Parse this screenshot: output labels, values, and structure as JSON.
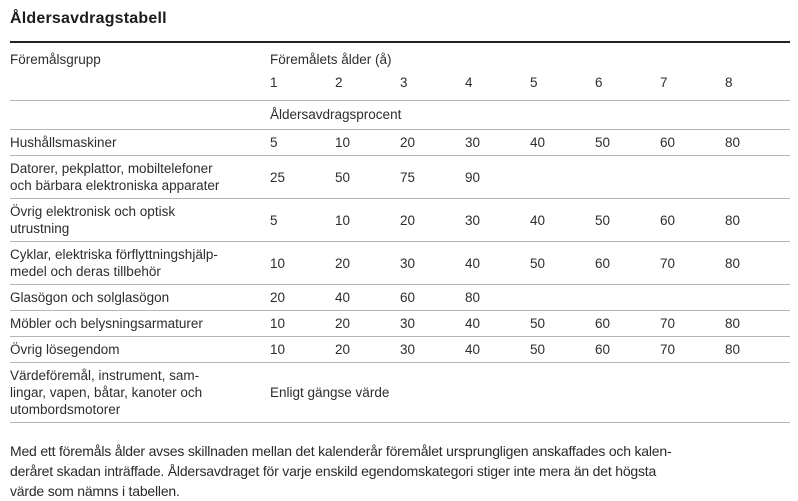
{
  "title": "Åldersavdragstabell",
  "table": {
    "group_header": "Föremålsgrupp",
    "age_header": "Föremålets ålder (å)",
    "age_columns": [
      "1",
      "2",
      "3",
      "4",
      "5",
      "6",
      "7",
      "8"
    ],
    "section_header": "Åldersavdragsprocent",
    "rows": [
      {
        "label": "Hushållsmaskiner",
        "values": [
          "5",
          "10",
          "20",
          "30",
          "40",
          "50",
          "60",
          "80"
        ]
      },
      {
        "label": "Datorer, pekplattor, mobiltelefoner\noch bärbara elektroniska apparater",
        "values": [
          "25",
          "50",
          "75",
          "90",
          "",
          "",
          "",
          ""
        ]
      },
      {
        "label": "Övrig elektronisk och optisk\nutrustning",
        "values": [
          "5",
          "10",
          "20",
          "30",
          "40",
          "50",
          "60",
          "80"
        ]
      },
      {
        "label": "Cyklar, elektriska förflyttningshjälp-\nmedel och deras tillbehör",
        "values": [
          "10",
          "20",
          "30",
          "40",
          "50",
          "60",
          "70",
          "80"
        ]
      },
      {
        "label": "Glasögon och solglasögon",
        "values": [
          "20",
          "40",
          "60",
          "80",
          "",
          "",
          "",
          ""
        ]
      },
      {
        "label": "Möbler och belysningsarmaturer",
        "values": [
          "10",
          "20",
          "30",
          "40",
          "50",
          "60",
          "70",
          "80"
        ]
      },
      {
        "label": "Övrig lösegendom",
        "values": [
          "10",
          "20",
          "30",
          "40",
          "50",
          "60",
          "70",
          "80"
        ]
      }
    ],
    "special_row": {
      "label": "Värdeföremål, instrument, sam-\nlingar, vapen, båtar, kanoter och\nutombordsmotorer",
      "value": "Enligt gängse värde"
    }
  },
  "footnote": "Med ett föremåls ålder avses skillnaden mellan det kalenderår föremålet ursprungligen anskaffades och kalen-\nderåret skadan inträffade. Åldersavdraget för varje enskild egendomskategori stiger inte mera än det högsta\nvärde som nämns i tabellen.",
  "colors": {
    "text": "#2d2d2d",
    "divider": "#b5b5ba",
    "top_border": "#222226"
  }
}
